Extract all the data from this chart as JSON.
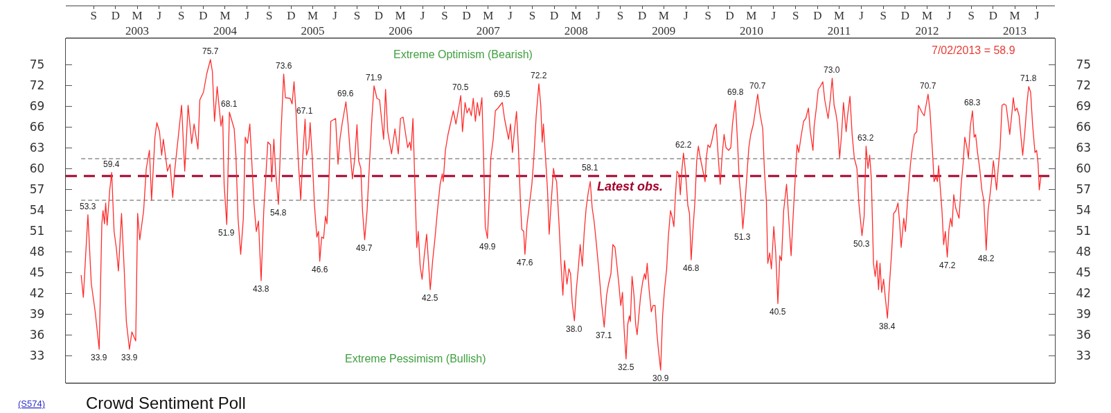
{
  "chart_data": {
    "type": "line",
    "title": "Crowd Sentiment Poll",
    "x": [
      "2002-07-25",
      "2002-08-03",
      "2002-08-22",
      "2002-09-05",
      "2002-09-21",
      "2002-10-08",
      "2002-10-19",
      "2002-10-24",
      "2002-10-30",
      "2002-11-04",
      "2002-11-10",
      "2002-11-21",
      "2002-11-29",
      "2002-12-09",
      "2002-12-18",
      "2002-12-27",
      "2003-01-09",
      "2003-01-20",
      "2003-01-29",
      "2003-02-11",
      "2003-02-21",
      "2003-03-09",
      "2003-03-17",
      "2003-03-26",
      "2003-04-11",
      "2003-04-22",
      "2003-05-05",
      "2003-05-14",
      "2003-05-28",
      "2003-06-05",
      "2003-06-16",
      "2003-06-25",
      "2003-07-02",
      "2003-07-19",
      "2003-07-30",
      "2003-08-10",
      "2003-08-18",
      "2003-09-02",
      "2003-09-16",
      "2003-09-29",
      "2003-10-13",
      "2003-10-28",
      "2003-11-07",
      "2003-11-23",
      "2003-12-01",
      "2003-12-16",
      "2003-12-30",
      "2004-01-14",
      "2004-01-22",
      "2004-01-31",
      "2004-02-11",
      "2004-02-27",
      "2004-03-05",
      "2004-03-11",
      "2004-03-22",
      "2004-04-02",
      "2004-04-22",
      "2004-04-29",
      "2004-05-08",
      "2004-05-19",
      "2004-05-30",
      "2004-06-07",
      "2004-06-16",
      "2004-06-26",
      "2004-07-04",
      "2004-07-13",
      "2004-07-23",
      "2004-08-01",
      "2004-08-12",
      "2004-08-23",
      "2004-09-09",
      "2004-09-20",
      "2004-09-25",
      "2004-10-04",
      "2004-10-12",
      "2004-10-23",
      "2004-11-03",
      "2004-11-14",
      "2004-11-21",
      "2004-12-11",
      "2004-12-19",
      "2004-12-27",
      "2005-01-04",
      "2005-01-13",
      "2005-01-24",
      "2005-02-01",
      "2005-02-11",
      "2005-02-17",
      "2005-02-26",
      "2005-03-04",
      "2005-03-13",
      "2005-03-22",
      "2005-04-01",
      "2005-04-08",
      "2005-04-13",
      "2005-04-21",
      "2005-04-29",
      "2005-05-07",
      "2005-05-13",
      "2005-05-20",
      "2005-05-29",
      "2005-06-18",
      "2005-06-28",
      "2005-07-06",
      "2005-07-15",
      "2005-07-31",
      "2005-08-09",
      "2005-08-17",
      "2005-08-27",
      "2005-09-06",
      "2005-09-15",
      "2005-09-22",
      "2005-10-01",
      "2005-10-08",
      "2005-10-17",
      "2005-10-27",
      "2005-11-05",
      "2005-11-16",
      "2005-11-25",
      "2005-12-07",
      "2005-12-18",
      "2006-01-04",
      "2006-01-12",
      "2006-01-21",
      "2006-02-06",
      "2006-02-20",
      "2006-03-06",
      "2006-03-15",
      "2006-03-26",
      "2006-04-14",
      "2006-04-23",
      "2006-04-28",
      "2006-05-06",
      "2006-05-14",
      "2006-05-22",
      "2006-05-28",
      "2006-06-05",
      "2006-06-13",
      "2006-06-22",
      "2006-07-02",
      "2006-07-10",
      "2006-07-17",
      "2006-07-27",
      "2006-08-05",
      "2006-08-16",
      "2006-08-27",
      "2006-09-05",
      "2006-09-09",
      "2006-09-18",
      "2006-09-29",
      "2006-10-21",
      "2006-11-01",
      "2006-11-21",
      "2006-11-28",
      "2006-12-09",
      "2006-12-17",
      "2006-12-26",
      "2007-01-04",
      "2007-01-12",
      "2007-01-21",
      "2007-01-29",
      "2007-02-07",
      "2007-02-17",
      "2007-02-24",
      "2007-03-03",
      "2007-03-12",
      "2007-03-19",
      "2007-03-26",
      "2007-04-05",
      "2007-04-14",
      "2007-04-25",
      "2007-05-13",
      "2007-05-22",
      "2007-06-08",
      "2007-06-16",
      "2007-06-24",
      "2007-07-02",
      "2007-07-11",
      "2007-07-19",
      "2007-07-27",
      "2007-08-02",
      "2007-08-10",
      "2007-08-15",
      "2007-08-24",
      "2007-09-13",
      "2007-09-21",
      "2007-10-01",
      "2007-10-12",
      "2007-10-20",
      "2007-10-26",
      "2007-10-31",
      "2007-11-09",
      "2007-11-17",
      "2007-11-24",
      "2007-12-03",
      "2007-12-12",
      "2007-12-18",
      "2007-12-25",
      "2008-01-04",
      "2008-01-12",
      "2008-01-20",
      "2008-01-27",
      "2008-02-06",
      "2008-02-14",
      "2008-02-21",
      "2008-02-28",
      "2008-03-08",
      "2008-03-16",
      "2008-03-24",
      "2008-04-01",
      "2008-04-10",
      "2008-04-18",
      "2008-04-26",
      "2008-05-05",
      "2008-05-13",
      "2008-05-21",
      "2008-05-29",
      "2008-06-07",
      "2008-06-18",
      "2008-06-29",
      "2008-07-10",
      "2008-07-20",
      "2008-07-28",
      "2008-08-07",
      "2008-08-15",
      "2008-08-24",
      "2008-08-31",
      "2008-09-09",
      "2008-09-17",
      "2008-09-24",
      "2008-10-01",
      "2008-10-09",
      "2008-10-16",
      "2008-10-23",
      "2008-10-27",
      "2008-11-03",
      "2008-11-11",
      "2008-11-18",
      "2008-11-24",
      "2008-11-30",
      "2008-12-08",
      "2008-12-17",
      "2008-12-25",
      "2008-12-30",
      "2009-01-05",
      "2009-01-13",
      "2009-01-22",
      "2009-01-29",
      "2009-02-07",
      "2009-02-14",
      "2009-02-20",
      "2009-03-02",
      "2009-03-10",
      "2009-03-18",
      "2009-03-27",
      "2009-04-03",
      "2009-04-12",
      "2009-04-20",
      "2009-04-26",
      "2009-05-02",
      "2009-05-09",
      "2009-05-17",
      "2009-05-23",
      "2009-05-29",
      "2009-06-05",
      "2009-06-12",
      "2009-06-17",
      "2009-06-23",
      "2009-06-30",
      "2009-07-07",
      "2009-07-14",
      "2009-07-23",
      "2009-07-30",
      "2009-08-06",
      "2009-08-14",
      "2009-08-23",
      "2009-09-03",
      "2009-09-08",
      "2009-09-15",
      "2009-09-23",
      "2009-09-30",
      "2009-10-11",
      "2009-10-19",
      "2009-10-28",
      "2009-11-05",
      "2009-11-13",
      "2009-11-21",
      "2009-11-29",
      "2009-12-10",
      "2009-12-19",
      "2009-12-26",
      "2010-01-07",
      "2010-01-16",
      "2010-01-23",
      "2010-02-01",
      "2010-02-07",
      "2010-02-17",
      "2010-02-26",
      "2010-03-04",
      "2010-03-12",
      "2010-03-23",
      "2010-03-31",
      "2010-04-10",
      "2010-04-19",
      "2010-05-01",
      "2010-05-08",
      "2010-05-16",
      "2010-05-22",
      "2010-05-30",
      "2010-06-06",
      "2010-06-16",
      "2010-06-24",
      "2010-07-03",
      "2010-07-11",
      "2010-07-18",
      "2010-07-27",
      "2010-08-08",
      "2010-08-15",
      "2010-08-22",
      "2010-08-27",
      "2010-09-04",
      "2010-09-13",
      "2010-09-21",
      "2010-09-28",
      "2010-10-07",
      "2010-10-18",
      "2010-10-27",
      "2010-11-07",
      "2010-11-15",
      "2010-11-26",
      "2010-12-01",
      "2010-12-10",
      "2010-12-18",
      "2010-12-26",
      "2011-01-06",
      "2011-01-14",
      "2011-01-28",
      "2011-02-06",
      "2011-02-14",
      "2011-02-22",
      "2011-03-01",
      "2011-03-08",
      "2011-03-17",
      "2011-03-25",
      "2011-04-02",
      "2011-04-13",
      "2011-04-19",
      "2011-04-29",
      "2011-05-08",
      "2011-05-17",
      "2011-05-28",
      "2011-06-05",
      "2011-06-18",
      "2011-06-27",
      "2011-07-05",
      "2011-07-13",
      "2011-07-20",
      "2011-07-27",
      "2011-08-05",
      "2011-08-12",
      "2011-08-19",
      "2011-08-26",
      "2011-09-01",
      "2011-09-08",
      "2011-09-16",
      "2011-09-23",
      "2011-10-02",
      "2011-10-09",
      "2011-10-20",
      "2011-10-28",
      "2011-11-06",
      "2011-11-15",
      "2011-11-22",
      "2011-11-28",
      "2011-12-09",
      "2011-12-16",
      "2011-12-25",
      "2012-01-06",
      "2012-01-14",
      "2012-01-22",
      "2012-02-01",
      "2012-02-08",
      "2012-02-24",
      "2012-03-03",
      "2012-03-19",
      "2012-03-27",
      "2012-04-08",
      "2012-04-13",
      "2012-04-21",
      "2012-04-27",
      "2012-05-02",
      "2012-05-16",
      "2012-05-23",
      "2012-05-30",
      "2012-06-07",
      "2012-06-14",
      "2012-06-21",
      "2012-06-27",
      "2012-07-04",
      "2012-07-12",
      "2012-07-26",
      "2012-08-04",
      "2012-08-12",
      "2012-08-19",
      "2012-08-28",
      "2012-09-03",
      "2012-09-11",
      "2012-09-20",
      "2012-09-27",
      "2012-10-03",
      "2012-10-11",
      "2012-10-20",
      "2012-10-29",
      "2012-11-06",
      "2012-11-16",
      "2012-11-24",
      "2012-12-02",
      "2012-12-09",
      "2012-12-16",
      "2012-12-21",
      "2012-12-29",
      "2013-01-05",
      "2013-01-13",
      "2013-01-21",
      "2013-01-29",
      "2013-02-07",
      "2013-02-14",
      "2013-02-22",
      "2013-03-02",
      "2013-03-09",
      "2013-03-16",
      "2013-03-24",
      "2013-04-02",
      "2013-04-10",
      "2013-04-17",
      "2013-04-26",
      "2013-05-05",
      "2013-05-12",
      "2013-05-20",
      "2013-05-28",
      "2013-06-07",
      "2013-06-14",
      "2013-06-20",
      "2013-06-25",
      "2013-07-02"
    ],
    "series": [
      {
        "color": "#ff2b2b",
        "values": [
          44.6,
          41.4,
          53.3,
          43.4,
          39.4,
          33.9,
          52.0,
          53.9,
          52.0,
          55.0,
          51.8,
          56.9,
          59.4,
          50.9,
          48.6,
          45.2,
          53.5,
          45.5,
          37.9,
          33.9,
          36.4,
          35.1,
          53.5,
          49.7,
          53.9,
          60.0,
          62.6,
          55.4,
          64.5,
          66.6,
          65.3,
          61.9,
          64.2,
          59.6,
          60.6,
          55.8,
          59.6,
          64.5,
          69.1,
          59.6,
          69.1,
          63.6,
          66.4,
          62.8,
          69.9,
          71.0,
          73.7,
          75.7,
          74.0,
          66.8,
          71.8,
          66.1,
          67.6,
          57.7,
          51.9,
          68.1,
          65.7,
          61.9,
          52.8,
          47.6,
          52.8,
          64.5,
          63.6,
          66.4,
          61.1,
          55.0,
          50.9,
          52.4,
          43.8,
          53.9,
          63.8,
          63.4,
          58.1,
          64.2,
          59.2,
          54.8,
          65.3,
          73.6,
          70.2,
          70.1,
          69.3,
          72.5,
          68.3,
          61.5,
          55.4,
          61.5,
          67.1,
          61.9,
          63.0,
          66.6,
          61.5,
          54.7,
          50.1,
          50.9,
          46.6,
          50.1,
          49.9,
          53.1,
          52.0,
          56.9,
          66.8,
          67.2,
          60.6,
          64.2,
          66.4,
          69.6,
          66.4,
          62.6,
          58.5,
          61.5,
          66.3,
          61.1,
          60.0,
          53.9,
          49.7,
          53.9,
          60.0,
          67.2,
          71.9,
          70.1,
          69.9,
          64.2,
          71.4,
          65.3,
          62.1,
          65.7,
          62.1,
          67.2,
          67.4,
          63.0,
          63.8,
          62.6,
          67.2,
          57.7,
          48.6,
          50.9,
          45.9,
          44.0,
          47.4,
          50.5,
          46.3,
          42.5,
          46.7,
          49.7,
          53.9,
          57.7,
          59.2,
          58.1,
          62.6,
          64.9,
          68.3,
          66.4,
          70.5,
          65.3,
          69.5,
          68.0,
          68.7,
          67.6,
          70.1,
          66.8,
          69.5,
          67.6,
          70.2,
          61.5,
          51.6,
          49.9,
          55.4,
          61.5,
          64.2,
          68.3,
          68.7,
          69.5,
          67.2,
          64.2,
          66.4,
          62.3,
          65.3,
          68.2,
          63.0,
          55.4,
          51.2,
          50.9,
          47.6,
          52.0,
          57.7,
          61.5,
          67.6,
          72.2,
          69.1,
          63.8,
          66.4,
          61.5,
          56.9,
          50.5,
          55.4,
          60.0,
          58.8,
          58.1,
          52.0,
          46.3,
          41.7,
          46.7,
          43.3,
          45.5,
          44.8,
          40.6,
          38.0,
          42.5,
          45.5,
          49.0,
          45.9,
          50.9,
          54.3,
          56.6,
          58.1,
          54.3,
          52.4,
          49.3,
          45.2,
          40.6,
          37.1,
          41.7,
          43.3,
          44.8,
          49.0,
          48.6,
          46.3,
          43.3,
          40.2,
          42.1,
          36.8,
          32.5,
          37.5,
          38.7,
          37.9,
          44.4,
          41.7,
          37.5,
          36.0,
          38.3,
          41.4,
          43.6,
          44.8,
          44.0,
          46.3,
          42.5,
          39.3,
          40.2,
          40.2,
          36.4,
          34.1,
          30.9,
          38.7,
          42.5,
          45.5,
          50.1,
          53.9,
          52.8,
          51.6,
          55.8,
          59.6,
          59.2,
          56.2,
          59.6,
          62.2,
          60.0,
          57.7,
          54.7,
          53.5,
          46.8,
          50.9,
          55.4,
          61.1,
          63.2,
          61.5,
          60.0,
          58.1,
          61.5,
          63.4,
          63.0,
          63.8,
          65.7,
          66.4,
          61.5,
          57.7,
          61.9,
          64.9,
          63.0,
          62.6,
          63.0,
          66.4,
          69.8,
          63.8,
          58.5,
          55.0,
          51.3,
          55.4,
          60.0,
          63.0,
          64.9,
          66.4,
          68.3,
          70.7,
          68.0,
          65.7,
          59.6,
          55.4,
          46.3,
          47.8,
          45.5,
          51.6,
          47.8,
          40.5,
          47.4,
          46.7,
          53.9,
          57.7,
          53.9,
          50.1,
          47.4,
          52.8,
          58.5,
          63.4,
          62.3,
          64.5,
          66.8,
          67.2,
          68.7,
          65.3,
          62.6,
          66.1,
          68.7,
          71.4,
          71.8,
          72.5,
          69.9,
          67.2,
          69.9,
          73.0,
          69.1,
          68.0,
          66.4,
          61.5,
          64.9,
          69.5,
          65.3,
          67.6,
          70.4,
          64.9,
          61.5,
          60.0,
          55.0,
          50.3,
          53.1,
          63.2,
          60.0,
          61.9,
          58.5,
          46.3,
          44.4,
          46.7,
          42.5,
          46.3,
          42.1,
          44.0,
          41.4,
          38.4,
          42.5,
          48.2,
          53.5,
          53.9,
          55.0,
          52.0,
          48.6,
          52.8,
          50.9,
          55.4,
          60.7,
          63.0,
          64.9,
          65.3,
          69.1,
          68.0,
          67.6,
          70.7,
          68.3,
          61.5,
          58.1,
          58.8,
          58.1,
          60.4,
          53.9,
          49.0,
          50.9,
          47.2,
          51.2,
          52.8,
          51.6,
          56.2,
          54.3,
          52.8,
          57.7,
          60.7,
          64.5,
          63.0,
          61.5,
          66.1,
          68.3,
          64.5,
          64.9,
          62.3,
          60.0,
          56.9,
          55.4,
          48.2,
          53.9,
          56.2,
          58.5,
          61.1,
          59.6,
          56.9,
          60.0,
          63.0,
          69.1,
          69.3,
          69.1,
          67.2,
          64.9,
          67.6,
          70.2,
          68.3,
          68.7,
          67.6,
          64.5,
          61.9,
          65.3,
          69.5,
          71.8,
          71.0,
          66.4,
          62.3,
          62.6,
          60.7,
          56.9,
          58.9
        ]
      }
    ],
    "xlim": [
      "2002-05-22",
      "2013-08-29"
    ],
    "xticks": [
      {
        "value": "2002-09-15",
        "label": "S"
      },
      {
        "value": "2002-12-15",
        "label": "D"
      },
      {
        "value": "2003-03-15",
        "label": "M\n2003"
      },
      {
        "value": "2003-06-15",
        "label": "J"
      },
      {
        "value": "2003-09-15",
        "label": "S"
      },
      {
        "value": "2003-12-15",
        "label": "D"
      },
      {
        "value": "2004-03-15",
        "label": "M\n2004"
      },
      {
        "value": "2004-06-15",
        "label": "J"
      },
      {
        "value": "2004-09-15",
        "label": "S"
      },
      {
        "value": "2004-12-15",
        "label": "D"
      },
      {
        "value": "2005-03-15",
        "label": "M\n2005"
      },
      {
        "value": "2005-06-15",
        "label": "J"
      },
      {
        "value": "2005-09-15",
        "label": "S"
      },
      {
        "value": "2005-12-15",
        "label": "D"
      },
      {
        "value": "2006-03-15",
        "label": "M\n2006"
      },
      {
        "value": "2006-06-15",
        "label": "J"
      },
      {
        "value": "2006-09-15",
        "label": "S"
      },
      {
        "value": "2006-12-15",
        "label": "D"
      },
      {
        "value": "2007-03-15",
        "label": "M\n2007"
      },
      {
        "value": "2007-06-15",
        "label": "J"
      },
      {
        "value": "2007-09-15",
        "label": "S"
      },
      {
        "value": "2007-12-15",
        "label": "D"
      },
      {
        "value": "2008-03-15",
        "label": "M\n2008"
      },
      {
        "value": "2008-06-15",
        "label": "J"
      },
      {
        "value": "2008-09-15",
        "label": "S"
      },
      {
        "value": "2008-12-15",
        "label": "D"
      },
      {
        "value": "2009-03-15",
        "label": "M\n2009"
      },
      {
        "value": "2009-06-15",
        "label": "J"
      },
      {
        "value": "2009-09-15",
        "label": "S"
      },
      {
        "value": "2009-12-15",
        "label": "D"
      },
      {
        "value": "2010-03-15",
        "label": "M\n2010"
      },
      {
        "value": "2010-06-15",
        "label": "J"
      },
      {
        "value": "2010-09-15",
        "label": "S"
      },
      {
        "value": "2010-12-15",
        "label": "D"
      },
      {
        "value": "2011-03-15",
        "label": "M\n2011"
      },
      {
        "value": "2011-06-15",
        "label": "J"
      },
      {
        "value": "2011-09-15",
        "label": "S"
      },
      {
        "value": "2011-12-15",
        "label": "D"
      },
      {
        "value": "2012-03-15",
        "label": "M\n2012"
      },
      {
        "value": "2012-06-15",
        "label": "J"
      },
      {
        "value": "2012-09-15",
        "label": "S"
      },
      {
        "value": "2012-12-15",
        "label": "D"
      },
      {
        "value": "2013-03-15",
        "label": "M\n2013"
      },
      {
        "value": "2013-06-15",
        "label": "J"
      }
    ],
    "ylim": [
      29,
      78.8
    ],
    "yticks": [
      33,
      36,
      39,
      42,
      45,
      48,
      51,
      54,
      57,
      60,
      63,
      66,
      69,
      72,
      75
    ],
    "y2lim": [
      29,
      78.8
    ],
    "y2ticks": [
      33,
      36,
      39,
      42,
      45,
      48,
      51,
      54,
      57,
      60,
      63,
      66,
      69,
      72,
      75
    ],
    "ref_lines": [
      {
        "axis": "y",
        "value": 61.4,
        "color": "#555555",
        "line_style": "dashed"
      },
      {
        "axis": "y",
        "value": 55.4,
        "color": "#555555",
        "line_style": "dashed"
      },
      {
        "axis": "y",
        "value": 58.9,
        "label": "Latest obs.",
        "color": "#a3002b",
        "line_style": "dashed"
      }
    ],
    "annotations": [
      "Extreme Optimism (Bearish)",
      "7/02/2013 = 58.9",
      "Extreme Pessimism (Bullish)",
      "(S574)",
      {
        "text": "53.3",
        "x": "2002-08-22",
        "y": 53.3
      },
      {
        "text": "33.9",
        "x": "2002-10-08",
        "y": 33.9
      },
      {
        "text": "59.4",
        "x": "2002-11-29",
        "y": 59.4
      },
      {
        "text": "33.9",
        "x": "2003-02-11",
        "y": 33.9
      },
      {
        "text": "75.7",
        "x": "2004-01-14",
        "y": 75.7
      },
      {
        "text": "51.9",
        "x": "2004-03-22",
        "y": 51.9
      },
      {
        "text": "68.1",
        "x": "2004-04-02",
        "y": 68.1
      },
      {
        "text": "43.8",
        "x": "2004-08-12",
        "y": 43.8
      },
      {
        "text": "54.8",
        "x": "2004-10-23",
        "y": 54.8
      },
      {
        "text": "73.6",
        "x": "2004-11-14",
        "y": 73.6
      },
      {
        "text": "67.1",
        "x": "2005-02-11",
        "y": 67.1
      },
      {
        "text": "46.6",
        "x": "2005-04-13",
        "y": 46.6
      },
      {
        "text": "69.6",
        "x": "2005-07-31",
        "y": 69.6
      },
      {
        "text": "49.7",
        "x": "2005-10-17",
        "y": 49.7
      },
      {
        "text": "71.9",
        "x": "2005-11-25",
        "y": 71.9
      },
      {
        "text": "42.5",
        "x": "2006-07-17",
        "y": 42.5
      },
      {
        "text": "70.5",
        "x": "2006-11-21",
        "y": 70.5
      },
      {
        "text": "49.9",
        "x": "2007-03-12",
        "y": 49.9
      },
      {
        "text": "69.5",
        "x": "2007-05-13",
        "y": 69.5
      },
      {
        "text": "47.6",
        "x": "2007-08-15",
        "y": 47.6
      },
      {
        "text": "72.2",
        "x": "2007-10-12",
        "y": 72.2
      },
      {
        "text": "38.0",
        "x": "2008-03-08",
        "y": 38.0
      },
      {
        "text": "58.1",
        "x": "2008-05-13",
        "y": 58.1
      },
      {
        "text": "37.1",
        "x": "2008-07-10",
        "y": 37.1
      },
      {
        "text": "32.5",
        "x": "2008-10-09",
        "y": 32.5
      },
      {
        "text": "30.9",
        "x": "2009-03-02",
        "y": 30.9
      },
      {
        "text": "62.2",
        "x": "2009-06-05",
        "y": 62.2
      },
      {
        "text": "46.8",
        "x": "2009-07-07",
        "y": 46.8
      },
      {
        "text": "69.8",
        "x": "2010-01-07",
        "y": 69.8
      },
      {
        "text": "51.3",
        "x": "2010-02-07",
        "y": 51.3
      },
      {
        "text": "70.7",
        "x": "2010-04-10",
        "y": 70.7
      },
      {
        "text": "40.5",
        "x": "2010-07-03",
        "y": 40.5
      },
      {
        "text": "73.0",
        "x": "2011-02-14",
        "y": 73.0
      },
      {
        "text": "50.3",
        "x": "2011-06-18",
        "y": 50.3
      },
      {
        "text": "63.2",
        "x": "2011-07-05",
        "y": 63.2
      },
      {
        "text": "38.4",
        "x": "2011-10-02",
        "y": 38.4
      },
      {
        "text": "70.7",
        "x": "2012-03-19",
        "y": 70.7
      },
      {
        "text": "47.2",
        "x": "2012-06-07",
        "y": 47.2
      },
      {
        "text": "68.3",
        "x": "2012-09-20",
        "y": 68.3
      },
      {
        "text": "48.2",
        "x": "2012-11-16",
        "y": 48.2
      },
      {
        "text": "71.8",
        "x": "2013-05-12",
        "y": 71.8
      }
    ]
  }
}
